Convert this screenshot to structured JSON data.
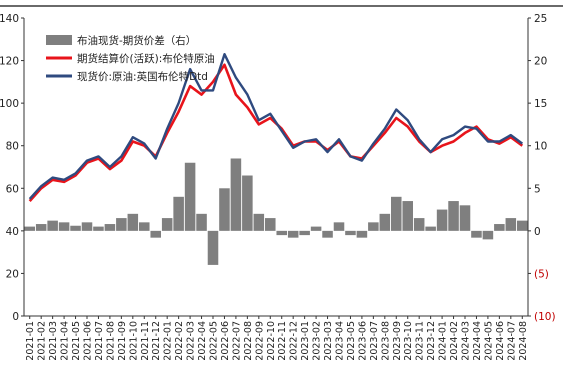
{
  "chart_data": {
    "type": "line",
    "title": "",
    "legend_placement": "top-left",
    "colors": {
      "spread": "#7f7f7f",
      "futures": "#e8141b",
      "spot": "#2f4a7f"
    },
    "left_axis": {
      "ylim": [
        0,
        140
      ],
      "ticks": [
        0,
        20,
        40,
        60,
        80,
        100,
        120,
        140
      ],
      "tick_labels": [
        "0",
        "20",
        "40",
        "60",
        "80",
        "100",
        "120",
        "140"
      ]
    },
    "right_axis": {
      "ylim": [
        -10,
        25
      ],
      "ticks": [
        -10,
        -5,
        0,
        5,
        10,
        15,
        20,
        25
      ],
      "tick_labels": [
        "(10)",
        "(5)",
        "0",
        "5",
        "10",
        "15",
        "20",
        "25"
      ]
    },
    "x_labels": [
      "2021-01",
      "2021-02",
      "2021-03",
      "2021-04",
      "2021-05",
      "2021-06",
      "2021-07",
      "2021-08",
      "2021-09",
      "2021-10",
      "2021-11",
      "2021-12",
      "2022-01",
      "2022-02",
      "2022-03",
      "2022-04",
      "2022-05",
      "2022-06",
      "2022-07",
      "2022-08",
      "2022-09",
      "2022-10",
      "2022-11",
      "2022-12",
      "2023-01",
      "2023-02",
      "2023-03",
      "2023-04",
      "2023-05",
      "2023-06",
      "2023-07",
      "2023-08",
      "2023-09",
      "2023-10",
      "2023-11",
      "2023-12",
      "2024-01",
      "2024-02",
      "2024-03",
      "2024-04",
      "2024-05",
      "2024-06",
      "2024-07",
      "2024-08"
    ],
    "series": [
      {
        "name": "布油现货-期货价差（右）",
        "kind": "bar",
        "axis": "right",
        "values": [
          0.5,
          0.8,
          1.2,
          1.0,
          0.6,
          1.0,
          0.5,
          0.8,
          1.5,
          2.0,
          1.0,
          -0.8,
          1.5,
          4.0,
          8.0,
          2.0,
          -4.0,
          5.0,
          8.5,
          6.5,
          2.0,
          1.5,
          -0.5,
          -0.8,
          -0.5,
          0.5,
          -0.8,
          1.0,
          -0.5,
          -0.8,
          1.0,
          2.0,
          4.0,
          3.5,
          1.5,
          0.5,
          2.5,
          3.5,
          3.0,
          -0.8,
          -1.0,
          0.8,
          1.5,
          1.2
        ]
      },
      {
        "name": "期货结算价(活跃):布伦特原油",
        "kind": "line",
        "axis": "left",
        "values": [
          54,
          60,
          64,
          63,
          66,
          72,
          74,
          69,
          73,
          82,
          80,
          75,
          86,
          96,
          108,
          104,
          110,
          118,
          104,
          98,
          90,
          93,
          88,
          80,
          82,
          82,
          78,
          82,
          75,
          74,
          80,
          86,
          93,
          89,
          82,
          77,
          80,
          82,
          86,
          89,
          83,
          81,
          84,
          80
        ]
      },
      {
        "name": "现货价:原油:英国布伦特Dtd",
        "kind": "line",
        "axis": "left",
        "values": [
          55,
          61,
          65,
          64,
          67,
          73,
          75,
          70,
          75,
          84,
          81,
          74,
          88,
          100,
          116,
          106,
          106,
          123,
          112,
          104,
          92,
          95,
          87,
          79,
          82,
          83,
          77,
          83,
          75,
          73,
          81,
          88,
          97,
          92,
          83,
          77,
          83,
          85,
          89,
          88,
          82,
          82,
          85,
          81
        ]
      }
    ]
  }
}
